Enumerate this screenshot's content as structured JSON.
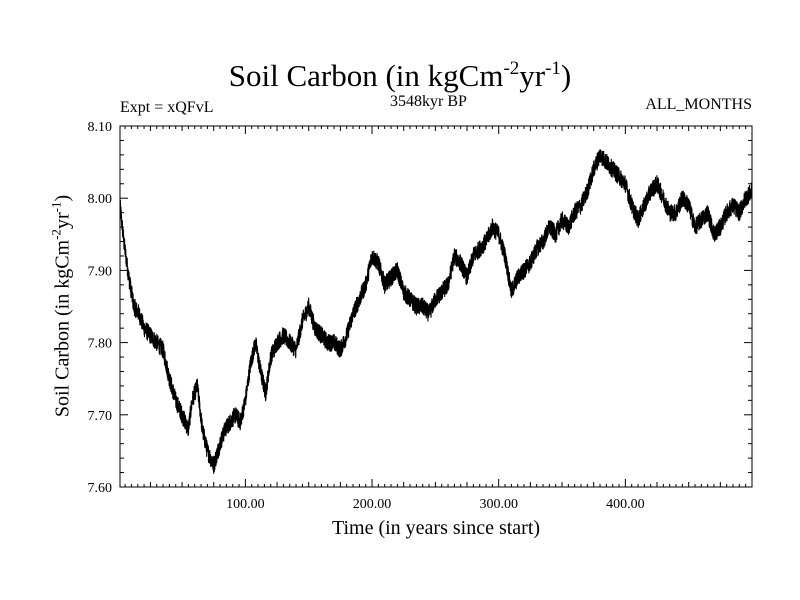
{
  "header": {
    "title_main": "Soil Carbon (in kgCm",
    "title_exp1": "-2",
    "title_mid": "yr",
    "title_exp2": "-1",
    "title_end": ")",
    "expt": "Expt = xQFvL",
    "period": "3548kyr BP",
    "months": "ALL_MONTHS"
  },
  "axes": {
    "xlabel": "Time (in years since start)",
    "ylabel_main": "Soil Carbon (in kgCm",
    "ylabel_exp1": "-2",
    "ylabel_mid": "yr",
    "ylabel_exp2": "-1",
    "ylabel_end": ")"
  },
  "chart_data": {
    "type": "line",
    "title": "Soil Carbon (in kgCm-2yr-1)",
    "xlabel": "Time (in years since start)",
    "ylabel": "Soil Carbon (in kgCm-2yr-1)",
    "xlim": [
      1,
      500
    ],
    "ylim": [
      7.6,
      8.1
    ],
    "grid": false,
    "x_ticks": [
      100,
      200,
      300,
      400
    ],
    "x_tick_labels": [
      "100.00",
      "200.00",
      "300.00",
      "400.00"
    ],
    "y_ticks": [
      7.6,
      7.7,
      7.8,
      7.9,
      8.0,
      8.1
    ],
    "y_tick_labels": [
      "7.60",
      "7.70",
      "7.80",
      "7.90",
      "8.00",
      "8.10"
    ],
    "noise_amplitude": 0.012,
    "series": [
      {
        "name": "Soil Carbon",
        "x": [
          1,
          4,
          8,
          12,
          16,
          20,
          25,
          30,
          35,
          40,
          45,
          50,
          55,
          58,
          62,
          66,
          70,
          75,
          80,
          84,
          88,
          92,
          96,
          100,
          104,
          108,
          112,
          116,
          120,
          125,
          130,
          135,
          140,
          145,
          150,
          155,
          160,
          165,
          170,
          175,
          180,
          185,
          190,
          195,
          200,
          205,
          210,
          215,
          220,
          225,
          230,
          235,
          240,
          245,
          250,
          255,
          260,
          265,
          270,
          275,
          280,
          285,
          290,
          295,
          300,
          305,
          310,
          315,
          320,
          325,
          330,
          335,
          340,
          345,
          350,
          355,
          360,
          365,
          370,
          375,
          380,
          385,
          390,
          395,
          400,
          405,
          410,
          415,
          420,
          425,
          430,
          435,
          440,
          445,
          450,
          455,
          460,
          465,
          470,
          475,
          480,
          485,
          490,
          495,
          500
        ],
        "values": [
          7.99,
          7.94,
          7.89,
          7.85,
          7.84,
          7.82,
          7.81,
          7.8,
          7.79,
          7.75,
          7.72,
          7.7,
          7.68,
          7.72,
          7.74,
          7.68,
          7.65,
          7.63,
          7.66,
          7.68,
          7.69,
          7.7,
          7.69,
          7.72,
          7.77,
          7.8,
          7.76,
          7.73,
          7.78,
          7.8,
          7.81,
          7.8,
          7.79,
          7.83,
          7.85,
          7.82,
          7.81,
          7.8,
          7.8,
          7.79,
          7.81,
          7.84,
          7.86,
          7.88,
          7.92,
          7.91,
          7.88,
          7.89,
          7.9,
          7.87,
          7.86,
          7.85,
          7.85,
          7.84,
          7.86,
          7.87,
          7.88,
          7.92,
          7.91,
          7.89,
          7.92,
          7.93,
          7.94,
          7.96,
          7.95,
          7.92,
          7.87,
          7.89,
          7.9,
          7.91,
          7.93,
          7.94,
          7.96,
          7.95,
          7.97,
          7.96,
          7.98,
          7.99,
          8.01,
          8.04,
          8.06,
          8.05,
          8.04,
          8.03,
          8.02,
          7.99,
          7.97,
          7.99,
          8.01,
          8.02,
          8.0,
          7.98,
          7.98,
          8.0,
          7.99,
          7.96,
          7.97,
          7.98,
          7.95,
          7.96,
          7.98,
          7.99,
          7.98,
          8.0,
          8.01
        ]
      }
    ]
  }
}
